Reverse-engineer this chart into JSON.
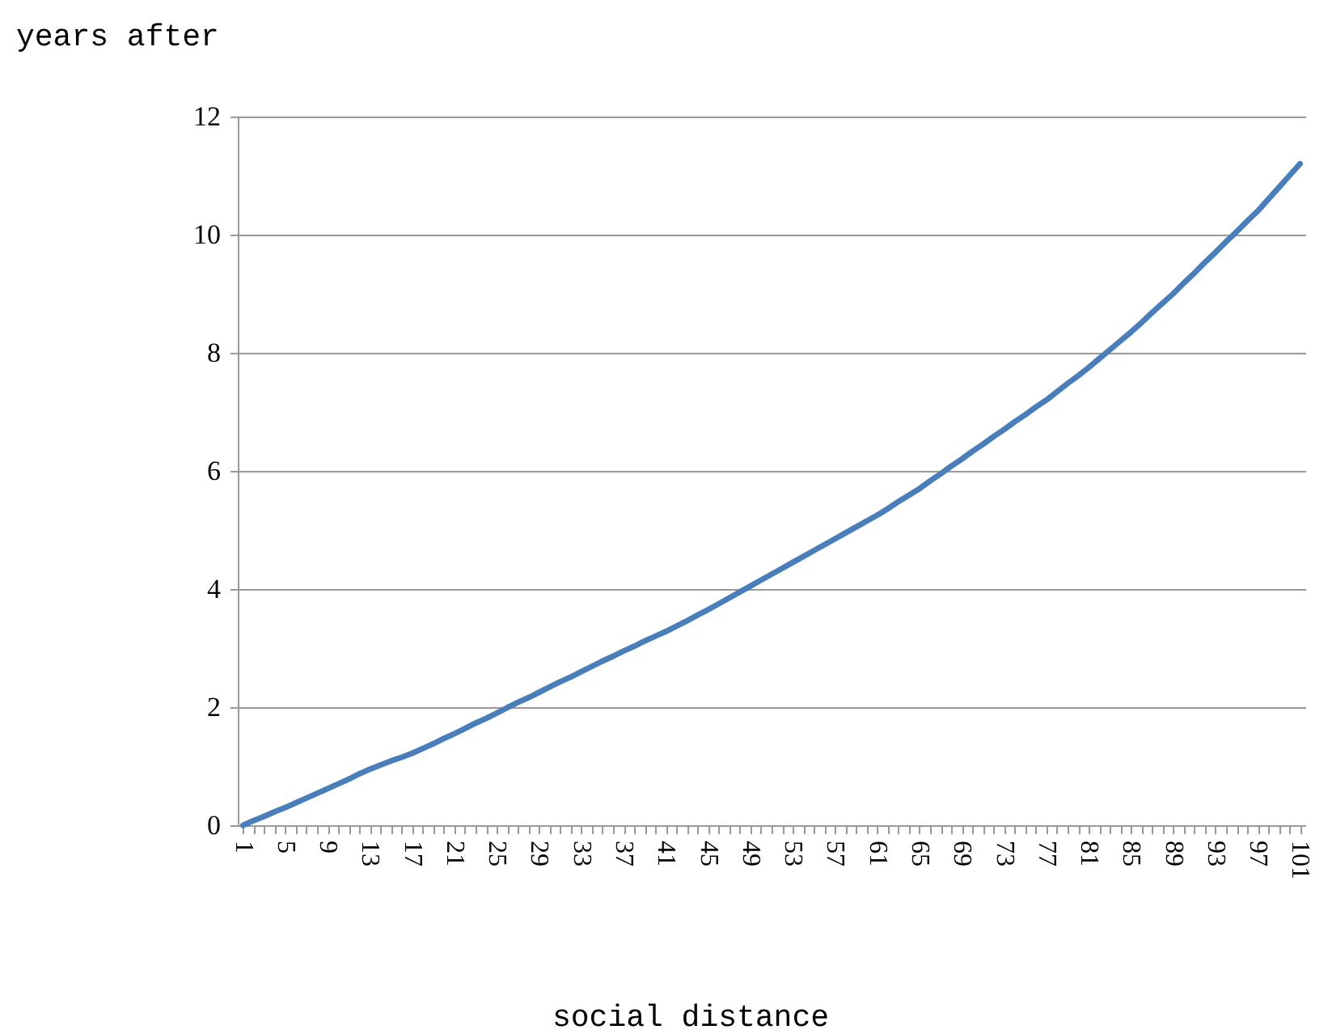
{
  "chart_data": {
    "type": "line",
    "xlabel": "social distance",
    "ylabel": "years after",
    "categories": [
      "1",
      null,
      null,
      null,
      "5",
      null,
      null,
      null,
      "9",
      null,
      null,
      null,
      "13",
      null,
      null,
      null,
      "17",
      null,
      null,
      null,
      "21",
      null,
      null,
      null,
      "25",
      null,
      null,
      null,
      "29",
      null,
      null,
      null,
      "33",
      null,
      null,
      null,
      "37",
      null,
      null,
      null,
      "41",
      null,
      null,
      null,
      "45",
      null,
      null,
      null,
      "49",
      null,
      null,
      null,
      "53",
      null,
      null,
      null,
      "57",
      null,
      null,
      null,
      "61",
      null,
      null,
      null,
      "65",
      null,
      null,
      null,
      "69",
      null,
      null,
      null,
      "73",
      null,
      null,
      null,
      "77",
      null,
      null,
      null,
      "81",
      null,
      null,
      null,
      "85",
      null,
      null,
      null,
      "89",
      null,
      null,
      null,
      "93",
      null,
      null,
      null,
      "97",
      null,
      null,
      null,
      "101"
    ],
    "series": [
      {
        "color": "#4a7ebb",
        "values": [
          0,
          0.08,
          0.15,
          0.23,
          0.3,
          0.38,
          0.46,
          0.54,
          0.62,
          0.7,
          0.78,
          0.87,
          0.95,
          1.02,
          1.09,
          1.15,
          1.22,
          1.3,
          1.38,
          1.47,
          1.55,
          1.64,
          1.73,
          1.81,
          1.9,
          1.99,
          2.08,
          2.16,
          2.25,
          2.34,
          2.43,
          2.51,
          2.6,
          2.69,
          2.78,
          2.86,
          2.95,
          3.03,
          3.12,
          3.2,
          3.28,
          3.37,
          3.46,
          3.56,
          3.65,
          3.75,
          3.85,
          3.95,
          4.05,
          4.15,
          4.25,
          4.35,
          4.45,
          4.55,
          4.65,
          4.75,
          4.85,
          4.95,
          5.05,
          5.15,
          5.25,
          5.36,
          5.48,
          5.59,
          5.7,
          5.83,
          5.95,
          6.08,
          6.2,
          6.33,
          6.45,
          6.58,
          6.7,
          6.83,
          6.95,
          7.08,
          7.2,
          7.34,
          7.48,
          7.61,
          7.75,
          7.9,
          8.05,
          8.2,
          8.35,
          8.51,
          8.68,
          8.84,
          9.0,
          9.18,
          9.35,
          9.53,
          9.7,
          9.88,
          10.05,
          10.23,
          10.4,
          10.6,
          10.8,
          11.0,
          11.2
        ]
      }
    ],
    "ylim": [
      0,
      12
    ],
    "yticks": [
      0,
      2,
      4,
      6,
      8,
      10,
      12
    ],
    "grid": "y",
    "marker": "none",
    "line_style": "solid"
  }
}
